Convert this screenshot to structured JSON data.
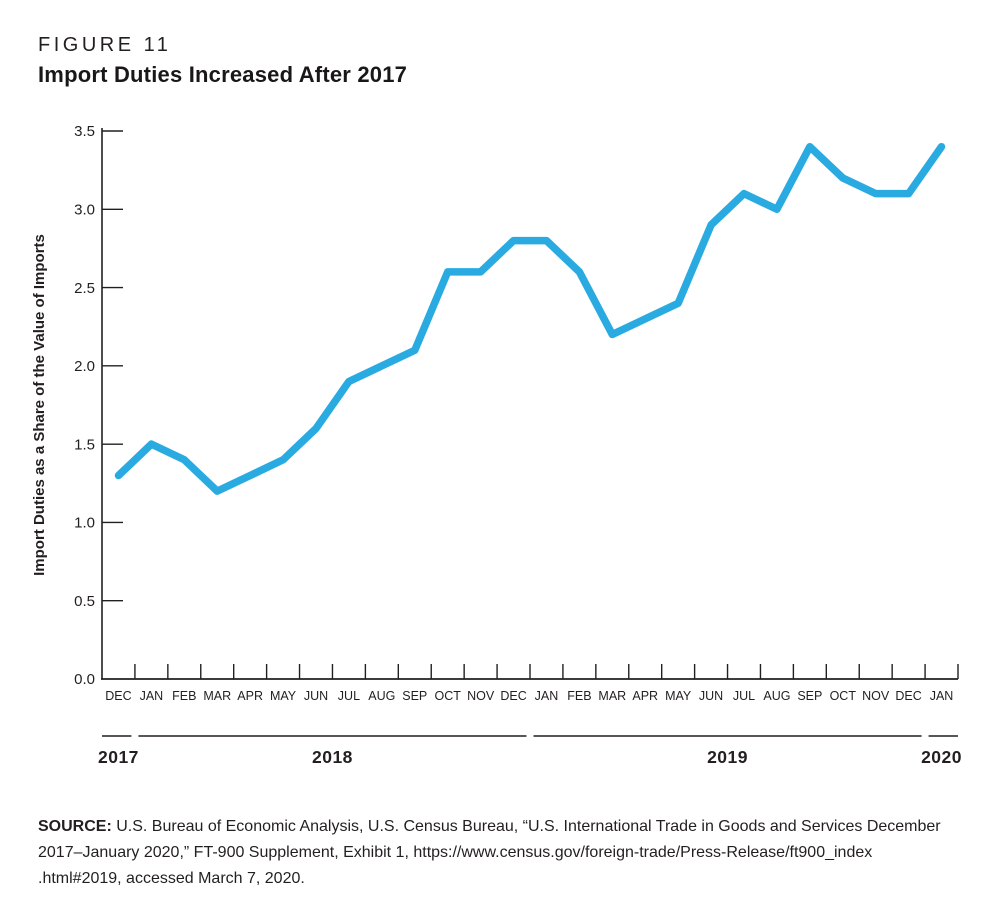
{
  "figure_label": "FIGURE 11",
  "title": "Import Duties Increased After 2017",
  "source": {
    "label": "SOURCE:",
    "lines": [
      "U.S. Bureau of Economic Analysis, U.S. Census Bureau, “U.S. International Trade in Goods and Services December",
      "2017–January 2020,” FT-900 Supplement, Exhibit 1, https://www.census.gov/foreign-trade/Press-Release/ft900_index",
      ".html#2019, accessed March 7, 2020."
    ]
  },
  "chart_data": {
    "type": "line",
    "title": "Import Duties Increased After 2017",
    "ylabel": "Import  Duties as a Share of the Value of Imports",
    "xlabel": "",
    "ylim": [
      0.0,
      3.5
    ],
    "ytick_step": 0.5,
    "ytick_labels": [
      "0.0",
      "0.5",
      "1.0",
      "1.5",
      "2.0",
      "2.5",
      "3.0",
      "3.5"
    ],
    "grid": false,
    "legend": "none",
    "line_color": "#29abe2",
    "axis_color": "#231f20",
    "categories": [
      "DEC",
      "JAN",
      "FEB",
      "MAR",
      "APR",
      "MAY",
      "JUN",
      "JUL",
      "AUG",
      "SEP",
      "OCT",
      "NOV",
      "DEC",
      "JAN",
      "FEB",
      "MAR",
      "APR",
      "MAY",
      "JUN",
      "JUL",
      "AUG",
      "SEP",
      "OCT",
      "NOV",
      "DEC",
      "JAN"
    ],
    "values": [
      1.3,
      1.5,
      1.4,
      1.2,
      1.3,
      1.4,
      1.6,
      1.9,
      2.0,
      2.1,
      2.6,
      2.6,
      2.8,
      2.8,
      2.6,
      2.2,
      2.3,
      2.4,
      2.9,
      3.1,
      3.0,
      3.4,
      3.2,
      3.1,
      3.1,
      3.4
    ],
    "year_groups": [
      {
        "label": "2017",
        "span": 1
      },
      {
        "label": "2018",
        "span": 12
      },
      {
        "label": "2019",
        "span": 12
      },
      {
        "label": "2020",
        "span": 1
      }
    ]
  }
}
